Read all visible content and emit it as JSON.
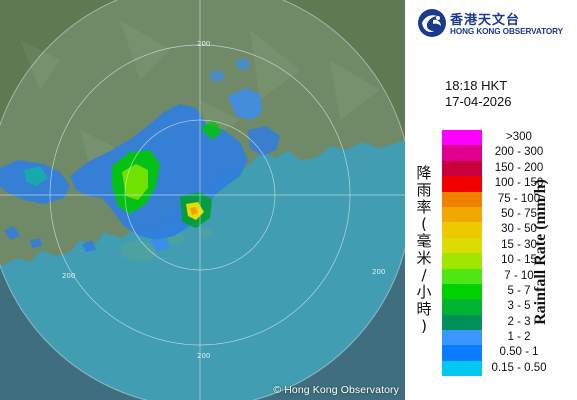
{
  "map": {
    "copyright": "© Hong Kong Observatory",
    "range_rings": [
      "200",
      "200",
      "200",
      "200"
    ]
  },
  "logo": {
    "name_cn": "香港天文台",
    "name_en": "HONG KONG OBSERVATORY"
  },
  "observation": {
    "time": "18:18 HKT",
    "date": "17-04-2026"
  },
  "legend": {
    "title_cn": [
      "降",
      "雨",
      "率",
      "(",
      "毫",
      "米",
      "/",
      "小",
      "時",
      ")"
    ],
    "title_en": "Rainfall Rate (mm/h)",
    "levels": [
      {
        "label": ">300",
        "color": "#ff00ff"
      },
      {
        "label": "200 - 300",
        "color": "#e0008f"
      },
      {
        "label": "150 - 200",
        "color": "#c8003c"
      },
      {
        "label": "100 - 150",
        "color": "#f00000"
      },
      {
        "label": "75 - 100",
        "color": "#f08000"
      },
      {
        "label": "50 - 75",
        "color": "#f0a800"
      },
      {
        "label": "30 - 50",
        "color": "#f0c800"
      },
      {
        "label": "15 - 30",
        "color": "#dcdc00"
      },
      {
        "label": "10 - 15",
        "color": "#a0e600"
      },
      {
        "label": "7 - 10",
        "color": "#50e614"
      },
      {
        "label": "5 - 7",
        "color": "#00d200"
      },
      {
        "label": "3 - 5",
        "color": "#00b432"
      },
      {
        "label": "2 - 3",
        "color": "#00915a"
      },
      {
        "label": "1 - 2",
        "color": "#3c96ff"
      },
      {
        "label": "0.50 - 1",
        "color": "#0a7dff"
      },
      {
        "label": "0.15 - 0.50",
        "color": "#00c8f0"
      }
    ]
  }
}
